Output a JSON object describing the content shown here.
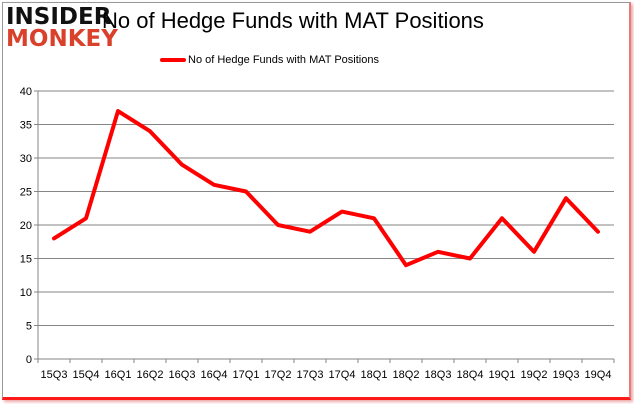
{
  "logo": {
    "line1": "INSIDER",
    "line2": "MONKEY"
  },
  "chart_data": {
    "type": "line",
    "title": "No of Hedge Funds with MAT Positions",
    "xlabel": "",
    "ylabel": "",
    "categories": [
      "15Q3",
      "15Q4",
      "16Q1",
      "16Q2",
      "16Q3",
      "16Q4",
      "17Q1",
      "17Q2",
      "17Q3",
      "17Q4",
      "18Q1",
      "18Q2",
      "18Q3",
      "18Q4",
      "19Q1",
      "19Q2",
      "19Q3",
      "19Q4"
    ],
    "series": [
      {
        "name": "No of Hedge Funds with MAT Positions",
        "color": "#ff0000",
        "values": [
          18,
          21,
          37,
          34,
          29,
          26,
          25,
          20,
          19,
          22,
          21,
          14,
          16,
          15,
          21,
          16,
          24,
          19
        ]
      }
    ],
    "ylim": [
      0,
      40
    ],
    "yticks": [
      0,
      5,
      10,
      15,
      20,
      25,
      30,
      35,
      40
    ],
    "grid": true,
    "legend_position": "top-center"
  }
}
